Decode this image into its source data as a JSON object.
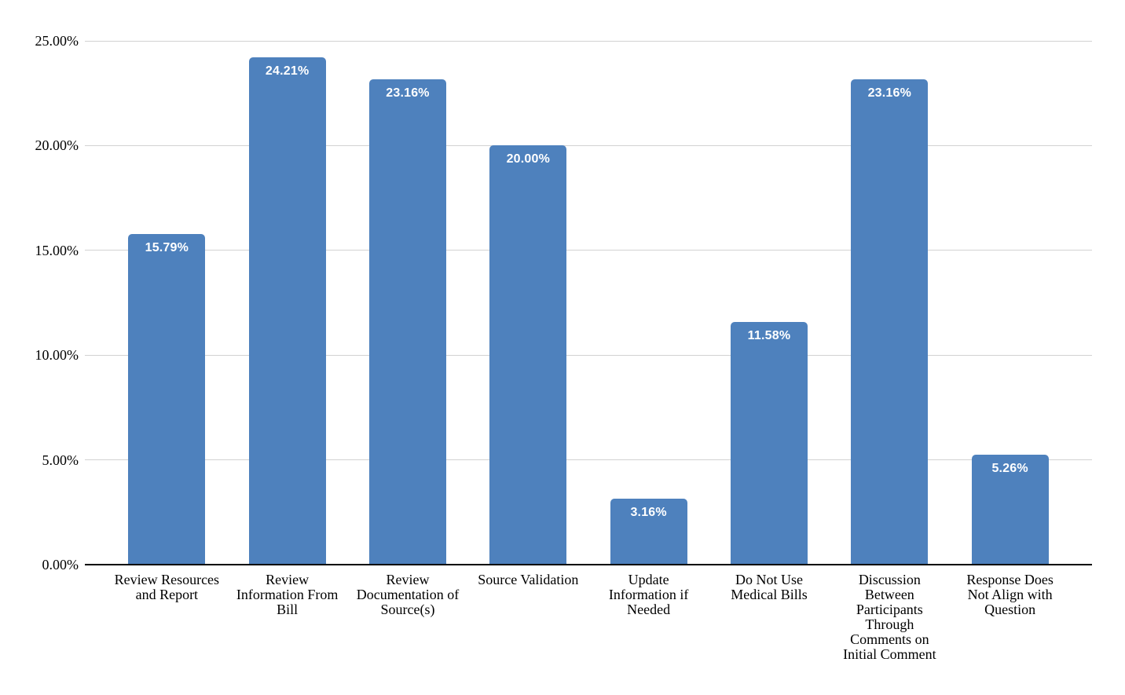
{
  "chart_data": {
    "type": "bar",
    "title": "",
    "xlabel": "",
    "ylabel": "",
    "categories": [
      "Review Resources and Report",
      "Review Information From Bill",
      "Review Documentation of Source(s)",
      "Source Validation",
      "Update Information if Needed",
      "Do Not Use Medical Bills",
      "Discussion Between Participants Through Comments on Initial Comment",
      "Response Does Not Align with Question"
    ],
    "category_lines": [
      [
        "Review Resources",
        "and Report"
      ],
      [
        "Review",
        "Information From",
        "Bill"
      ],
      [
        "Review",
        "Documentation of",
        "Source(s)"
      ],
      [
        "Source Validation"
      ],
      [
        "Update",
        "Information if",
        "Needed"
      ],
      [
        "Do Not Use",
        "Medical Bills"
      ],
      [
        "Discussion",
        "Between",
        "Participants",
        "Through",
        "Comments on",
        "Initial Comment"
      ],
      [
        "Response Does",
        "Not Align with",
        "Question"
      ]
    ],
    "values": [
      15.79,
      24.21,
      23.16,
      20.0,
      3.16,
      11.58,
      23.16,
      5.26
    ],
    "value_labels": [
      "15.79%",
      "24.21%",
      "23.16%",
      "20.00%",
      "3.16%",
      "11.58%",
      "23.16%",
      "5.26%"
    ],
    "y_tick_values": [
      0,
      5,
      10,
      15,
      20,
      25
    ],
    "y_tick_labels": [
      "0.00%",
      "5.00%",
      "10.00%",
      "15.00%",
      "20.00%",
      "25.00%"
    ],
    "ylim": [
      0,
      25
    ],
    "grid": true,
    "legend": false,
    "colors": {
      "bar": "#4e81bd",
      "gridline": "#d2d2d2",
      "axis_line": "#000000",
      "value_label_text": "#ffffff",
      "tick_label_text": "#000000",
      "background": "#ffffff"
    }
  }
}
